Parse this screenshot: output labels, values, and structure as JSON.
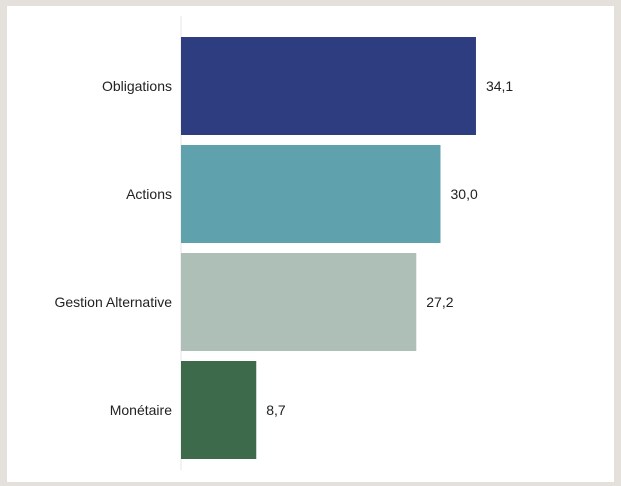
{
  "chart_data": {
    "type": "bar",
    "orientation": "horizontal",
    "categories": [
      "Obligations",
      "Actions",
      "Gestion Alternative",
      "Monétaire"
    ],
    "values": [
      34.1,
      30.0,
      27.2,
      8.7
    ],
    "value_labels": [
      "34,1",
      "30,0",
      "27,2",
      "8,7"
    ],
    "colors": [
      "#2e3d80",
      "#5fa2ae",
      "#aebfb7",
      "#3e6a4c"
    ],
    "title": "",
    "xlabel": "",
    "ylabel": "",
    "grid": false,
    "legend": "none"
  }
}
